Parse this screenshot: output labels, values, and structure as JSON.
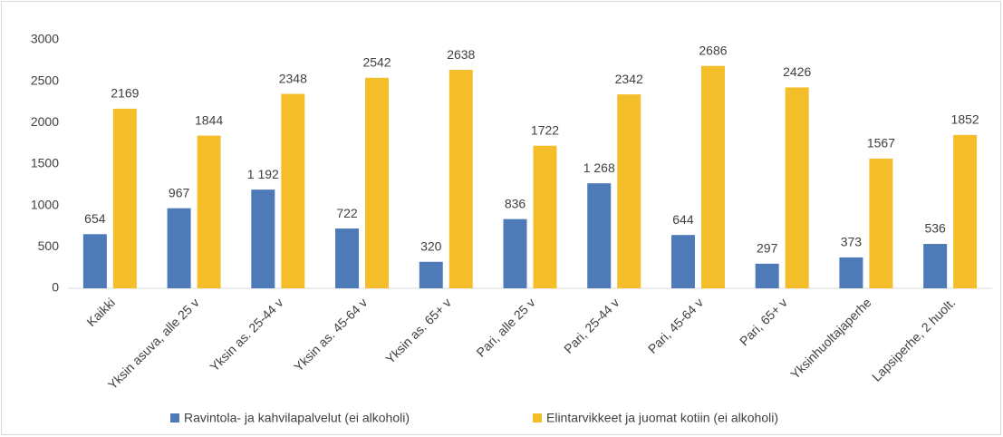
{
  "chart_data": {
    "type": "bar",
    "categories": [
      "Kaikki",
      "Yksin asuva, alle 25 v",
      "Yksin as. 25-44 v",
      "Yksin as. 45-64 v",
      "Yksin as. 65+ v",
      "Pari, alle 25 v",
      "Pari, 25-44 v",
      "Pari, 45-64 v",
      "Pari, 65+ v",
      "Yksinhuoltajaperhe",
      "Lapsiperhe, 2 huolt."
    ],
    "series": [
      {
        "name": "Ravintola- ja kahvilapalvelut (ei alkoholi)",
        "color": "#4f7ab8",
        "values": [
          654,
          967,
          1192,
          722,
          320,
          836,
          1268,
          644,
          297,
          373,
          536
        ],
        "value_labels": [
          "654",
          "967",
          "1 192",
          "722",
          "320",
          "836",
          "1 268",
          "644",
          "297",
          "373",
          "536"
        ]
      },
      {
        "name": "Elintarvikkeet ja juomat kotiin (ei alkoholi)",
        "color": "#f4bd2a",
        "values": [
          2169,
          1844,
          2348,
          2542,
          2638,
          1722,
          2342,
          2686,
          2426,
          1567,
          1852
        ]
      }
    ],
    "ylim": [
      0,
      3000
    ],
    "yticks": [
      0,
      500,
      1000,
      1500,
      2000,
      2500,
      3000
    ],
    "grid": false,
    "legend": "bottom"
  }
}
